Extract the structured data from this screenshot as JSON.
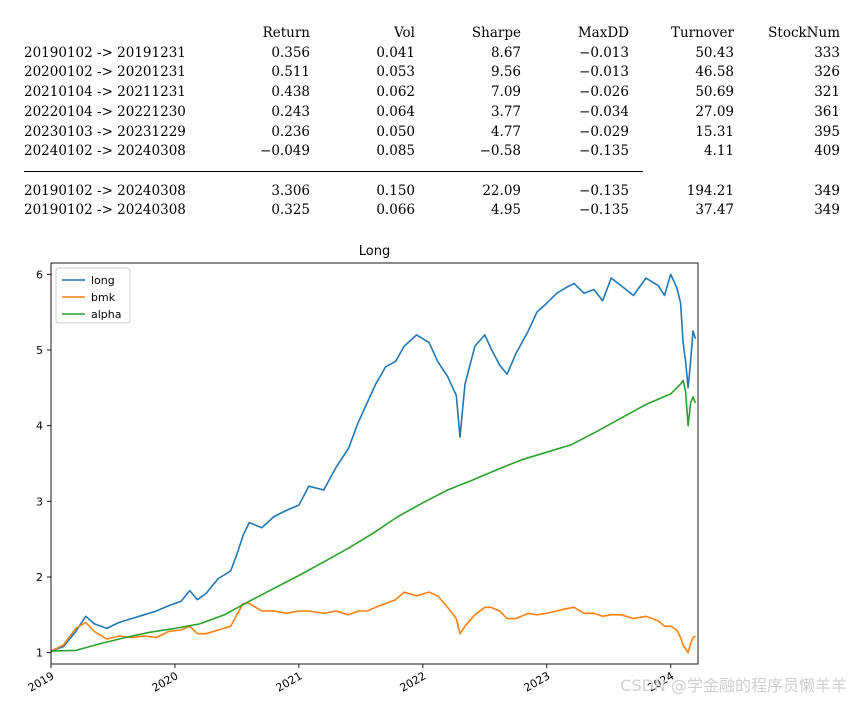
{
  "stats": {
    "headers": [
      "",
      "Return",
      "Vol",
      "Sharpe",
      "MaxDD",
      "Turnover",
      "StockNum"
    ],
    "rows": [
      [
        "20190102 -> 20191231",
        "0.356",
        "0.041",
        "8.67",
        "−0.013",
        "50.43",
        "333"
      ],
      [
        "20200102 -> 20201231",
        "0.511",
        "0.053",
        "9.56",
        "−0.013",
        "46.58",
        "326"
      ],
      [
        "20210104 -> 20211231",
        "0.438",
        "0.062",
        "7.09",
        "−0.026",
        "50.69",
        "321"
      ],
      [
        "20220104 -> 20221230",
        "0.243",
        "0.064",
        "3.77",
        "−0.034",
        "27.09",
        "361"
      ],
      [
        "20230103 -> 20231229",
        "0.236",
        "0.050",
        "4.77",
        "−0.029",
        "15.31",
        "395"
      ],
      [
        "20240102 -> 20240308",
        "−0.049",
        "0.085",
        "−0.58",
        "−0.135",
        "4.11",
        "409"
      ]
    ],
    "summary_rows": [
      [
        "20190102 -> 20240308",
        "3.306",
        "0.150",
        "22.09",
        "−0.135",
        "194.21",
        "349"
      ],
      [
        "20190102 -> 20240308",
        "0.325",
        "0.066",
        "4.95",
        "−0.135",
        "37.47",
        "349"
      ]
    ]
  },
  "chart_data": {
    "type": "line",
    "title": "Long",
    "xlabel": "",
    "ylabel": "",
    "xlim": [
      2019.0,
      2024.22
    ],
    "ylim": [
      0.85,
      6.15
    ],
    "x_ticks": [
      2019,
      2020,
      2021,
      2022,
      2023,
      2024
    ],
    "x_tick_labels": [
      "2019",
      "2020",
      "2021",
      "2022",
      "2023",
      "2024"
    ],
    "y_ticks": [
      1,
      2,
      3,
      4,
      5,
      6
    ],
    "y_tick_labels": [
      "1",
      "2",
      "3",
      "4",
      "5",
      "6"
    ],
    "legend_position": "top-left",
    "series": [
      {
        "name": "long",
        "color": "#1f77b4",
        "points": [
          [
            2019.0,
            1.02
          ],
          [
            2019.1,
            1.08
          ],
          [
            2019.2,
            1.28
          ],
          [
            2019.28,
            1.48
          ],
          [
            2019.35,
            1.38
          ],
          [
            2019.45,
            1.32
          ],
          [
            2019.55,
            1.4
          ],
          [
            2019.65,
            1.45
          ],
          [
            2019.75,
            1.5
          ],
          [
            2019.85,
            1.55
          ],
          [
            2019.95,
            1.62
          ],
          [
            2020.05,
            1.68
          ],
          [
            2020.12,
            1.82
          ],
          [
            2020.18,
            1.7
          ],
          [
            2020.25,
            1.78
          ],
          [
            2020.35,
            1.98
          ],
          [
            2020.45,
            2.08
          ],
          [
            2020.5,
            2.3
          ],
          [
            2020.55,
            2.55
          ],
          [
            2020.6,
            2.72
          ],
          [
            2020.7,
            2.65
          ],
          [
            2020.8,
            2.8
          ],
          [
            2020.9,
            2.88
          ],
          [
            2021.0,
            2.95
          ],
          [
            2021.08,
            3.2
          ],
          [
            2021.2,
            3.15
          ],
          [
            2021.3,
            3.45
          ],
          [
            2021.4,
            3.7
          ],
          [
            2021.48,
            4.05
          ],
          [
            2021.55,
            4.3
          ],
          [
            2021.62,
            4.55
          ],
          [
            2021.7,
            4.78
          ],
          [
            2021.78,
            4.85
          ],
          [
            2021.85,
            5.05
          ],
          [
            2021.95,
            5.2
          ],
          [
            2022.05,
            5.1
          ],
          [
            2022.12,
            4.85
          ],
          [
            2022.2,
            4.65
          ],
          [
            2022.27,
            4.4
          ],
          [
            2022.3,
            3.85
          ],
          [
            2022.34,
            4.55
          ],
          [
            2022.42,
            5.05
          ],
          [
            2022.5,
            5.2
          ],
          [
            2022.55,
            5.02
          ],
          [
            2022.62,
            4.8
          ],
          [
            2022.68,
            4.68
          ],
          [
            2022.75,
            4.95
          ],
          [
            2022.85,
            5.25
          ],
          [
            2022.92,
            5.5
          ],
          [
            2023.0,
            5.62
          ],
          [
            2023.08,
            5.75
          ],
          [
            2023.15,
            5.82
          ],
          [
            2023.22,
            5.88
          ],
          [
            2023.3,
            5.75
          ],
          [
            2023.38,
            5.8
          ],
          [
            2023.45,
            5.65
          ],
          [
            2023.52,
            5.95
          ],
          [
            2023.6,
            5.85
          ],
          [
            2023.7,
            5.72
          ],
          [
            2023.8,
            5.95
          ],
          [
            2023.9,
            5.85
          ],
          [
            2023.95,
            5.72
          ],
          [
            2024.0,
            6.0
          ],
          [
            2024.05,
            5.82
          ],
          [
            2024.08,
            5.62
          ],
          [
            2024.1,
            5.1
          ],
          [
            2024.12,
            4.85
          ],
          [
            2024.14,
            4.5
          ],
          [
            2024.16,
            4.85
          ],
          [
            2024.18,
            5.25
          ],
          [
            2024.2,
            5.15
          ]
        ]
      },
      {
        "name": "bmk",
        "color": "#ff7f0e",
        "points": [
          [
            2019.0,
            1.02
          ],
          [
            2019.1,
            1.1
          ],
          [
            2019.2,
            1.32
          ],
          [
            2019.28,
            1.4
          ],
          [
            2019.35,
            1.28
          ],
          [
            2019.45,
            1.18
          ],
          [
            2019.55,
            1.22
          ],
          [
            2019.65,
            1.2
          ],
          [
            2019.75,
            1.22
          ],
          [
            2019.85,
            1.2
          ],
          [
            2019.95,
            1.28
          ],
          [
            2020.05,
            1.3
          ],
          [
            2020.12,
            1.35
          ],
          [
            2020.18,
            1.25
          ],
          [
            2020.25,
            1.25
          ],
          [
            2020.35,
            1.3
          ],
          [
            2020.45,
            1.35
          ],
          [
            2020.5,
            1.5
          ],
          [
            2020.55,
            1.65
          ],
          [
            2020.6,
            1.65
          ],
          [
            2020.7,
            1.55
          ],
          [
            2020.8,
            1.55
          ],
          [
            2020.9,
            1.52
          ],
          [
            2021.0,
            1.55
          ],
          [
            2021.08,
            1.55
          ],
          [
            2021.2,
            1.52
          ],
          [
            2021.3,
            1.55
          ],
          [
            2021.4,
            1.5
          ],
          [
            2021.48,
            1.55
          ],
          [
            2021.55,
            1.55
          ],
          [
            2021.62,
            1.6
          ],
          [
            2021.7,
            1.65
          ],
          [
            2021.78,
            1.7
          ],
          [
            2021.85,
            1.8
          ],
          [
            2021.95,
            1.75
          ],
          [
            2022.05,
            1.8
          ],
          [
            2022.12,
            1.75
          ],
          [
            2022.2,
            1.6
          ],
          [
            2022.27,
            1.45
          ],
          [
            2022.3,
            1.25
          ],
          [
            2022.34,
            1.35
          ],
          [
            2022.42,
            1.5
          ],
          [
            2022.5,
            1.6
          ],
          [
            2022.55,
            1.6
          ],
          [
            2022.62,
            1.55
          ],
          [
            2022.68,
            1.45
          ],
          [
            2022.75,
            1.45
          ],
          [
            2022.85,
            1.52
          ],
          [
            2022.92,
            1.5
          ],
          [
            2023.0,
            1.52
          ],
          [
            2023.08,
            1.55
          ],
          [
            2023.15,
            1.58
          ],
          [
            2023.22,
            1.6
          ],
          [
            2023.3,
            1.52
          ],
          [
            2023.38,
            1.52
          ],
          [
            2023.45,
            1.48
          ],
          [
            2023.52,
            1.5
          ],
          [
            2023.6,
            1.5
          ],
          [
            2023.7,
            1.45
          ],
          [
            2023.8,
            1.48
          ],
          [
            2023.9,
            1.42
          ],
          [
            2023.95,
            1.35
          ],
          [
            2024.0,
            1.35
          ],
          [
            2024.05,
            1.3
          ],
          [
            2024.08,
            1.2
          ],
          [
            2024.1,
            1.1
          ],
          [
            2024.12,
            1.05
          ],
          [
            2024.14,
            1.0
          ],
          [
            2024.16,
            1.12
          ],
          [
            2024.18,
            1.2
          ],
          [
            2024.2,
            1.22
          ]
        ]
      },
      {
        "name": "alpha",
        "color": "#2ca02c",
        "points": [
          [
            2019.0,
            1.02
          ],
          [
            2019.2,
            1.03
          ],
          [
            2019.4,
            1.12
          ],
          [
            2019.6,
            1.2
          ],
          [
            2019.8,
            1.27
          ],
          [
            2020.0,
            1.32
          ],
          [
            2020.2,
            1.38
          ],
          [
            2020.4,
            1.5
          ],
          [
            2020.6,
            1.68
          ],
          [
            2020.8,
            1.85
          ],
          [
            2021.0,
            2.02
          ],
          [
            2021.2,
            2.2
          ],
          [
            2021.4,
            2.38
          ],
          [
            2021.6,
            2.58
          ],
          [
            2021.8,
            2.8
          ],
          [
            2022.0,
            2.98
          ],
          [
            2022.2,
            3.15
          ],
          [
            2022.4,
            3.28
          ],
          [
            2022.6,
            3.42
          ],
          [
            2022.8,
            3.55
          ],
          [
            2023.0,
            3.65
          ],
          [
            2023.2,
            3.75
          ],
          [
            2023.4,
            3.92
          ],
          [
            2023.6,
            4.1
          ],
          [
            2023.8,
            4.28
          ],
          [
            2024.0,
            4.42
          ],
          [
            2024.08,
            4.55
          ],
          [
            2024.1,
            4.6
          ],
          [
            2024.12,
            4.45
          ],
          [
            2024.14,
            4.0
          ],
          [
            2024.16,
            4.3
          ],
          [
            2024.18,
            4.38
          ],
          [
            2024.2,
            4.3
          ]
        ]
      }
    ]
  },
  "watermark": "CSDN @学金融的程序员懒羊羊"
}
